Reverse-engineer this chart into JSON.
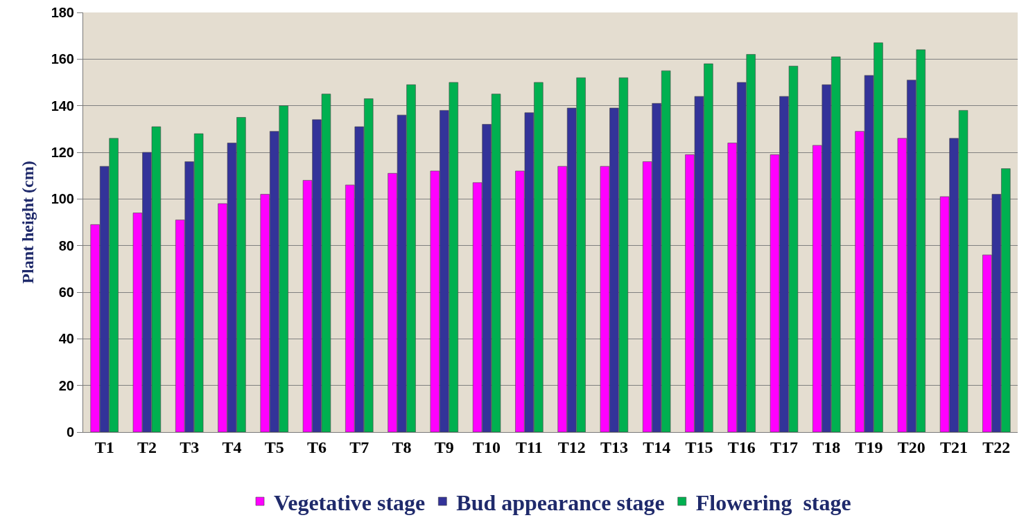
{
  "chart_data": {
    "type": "bar",
    "ylabel": "Plant height (cm)",
    "categories": [
      "T1",
      "T2",
      "T3",
      "T4",
      "T5",
      "T6",
      "T7",
      "T8",
      "T9",
      "T10",
      "T11",
      "T12",
      "T13",
      "T14",
      "T15",
      "T16",
      "T17",
      "T18",
      "T19",
      "T20",
      "T21",
      "T22"
    ],
    "series": [
      {
        "name": "Vegetative stage",
        "color": "#ff00ff",
        "values": [
          89,
          94,
          91,
          98,
          102,
          108,
          106,
          111,
          112,
          107,
          112,
          114,
          114,
          116,
          119,
          124,
          119,
          123,
          129,
          126,
          101,
          76
        ]
      },
      {
        "name": "Bud appearance stage",
        "color": "#333399",
        "values": [
          114,
          120,
          116,
          124,
          129,
          134,
          131,
          136,
          138,
          132,
          137,
          139,
          139,
          141,
          144,
          150,
          144,
          149,
          153,
          151,
          126,
          102
        ]
      },
      {
        "name": "Flowering  stage",
        "color": "#00b050",
        "values": [
          126,
          131,
          128,
          135,
          140,
          145,
          143,
          149,
          150,
          145,
          150,
          152,
          152,
          155,
          158,
          162,
          157,
          161,
          167,
          164,
          138,
          113
        ]
      }
    ],
    "ylim": [
      0,
      180
    ],
    "yticks": [
      0,
      20,
      40,
      60,
      80,
      100,
      120,
      140,
      160,
      180
    ],
    "grid": "y",
    "legend": "bottom"
  }
}
